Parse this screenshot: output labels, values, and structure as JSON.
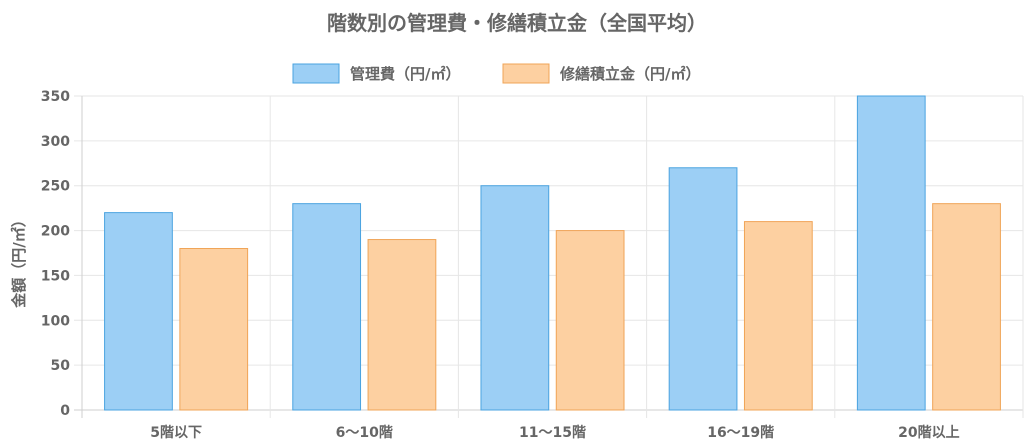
{
  "chart_data": {
    "type": "bar",
    "title": "階数別の管理費・修繕積立金（全国平均）",
    "categories": [
      "5階以下",
      "6〜10階",
      "11〜15階",
      "16〜19階",
      "20階以上"
    ],
    "series": [
      {
        "name": "管理費（円/㎡）",
        "values": [
          220,
          230,
          250,
          270,
          350
        ],
        "color": "#9ccff5",
        "border": "#4aa3e0"
      },
      {
        "name": "修繕積立金（円/㎡）",
        "values": [
          180,
          190,
          200,
          210,
          230
        ],
        "color": "#fdd0a1",
        "border": "#f0a457"
      }
    ],
    "ylabel": "金額（円/㎡）",
    "xlabel": "",
    "ylim": [
      0,
      350
    ],
    "yticks": [
      0,
      50,
      100,
      150,
      200,
      250,
      300,
      350
    ],
    "grid": true,
    "legend_position": "top-center"
  }
}
